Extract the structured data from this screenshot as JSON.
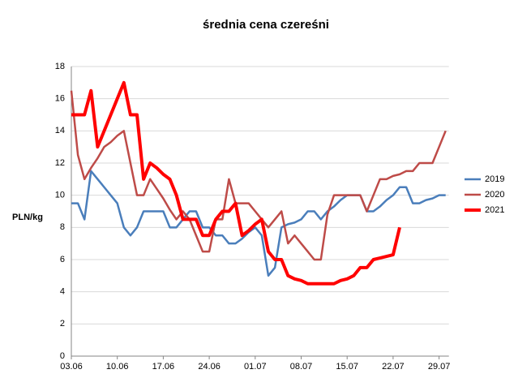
{
  "chart_data": {
    "type": "line",
    "title": "średnia cena czereśni",
    "y_label": "PLN/kg",
    "categories": [
      "03.06",
      null,
      null,
      null,
      null,
      null,
      null,
      "10.06",
      null,
      null,
      null,
      null,
      null,
      null,
      "17.06",
      null,
      null,
      null,
      null,
      null,
      null,
      "24.06",
      null,
      null,
      null,
      null,
      null,
      null,
      "01.07",
      null,
      null,
      null,
      null,
      null,
      null,
      "08.07",
      null,
      null,
      null,
      null,
      null,
      null,
      "15.07",
      null,
      null,
      null,
      null,
      null,
      null,
      "22.07",
      null,
      null,
      null,
      null,
      null,
      null,
      "29.07",
      null
    ],
    "series": [
      {
        "name": "2019",
        "color": "#4a7ebb",
        "width": 2.5,
        "values": [
          9.5,
          9.5,
          8.5,
          11.5,
          11,
          10.5,
          10,
          9.5,
          8,
          7.5,
          8,
          9,
          9,
          9,
          9,
          8,
          8,
          8.5,
          9,
          9,
          8,
          8,
          7.5,
          7.5,
          7,
          7,
          7.3,
          7.7,
          8,
          7.5,
          5,
          5.5,
          8,
          8.2,
          8.3,
          8.5,
          9,
          9,
          8.5,
          9,
          9.3,
          9.7,
          10,
          10,
          10,
          9,
          9,
          9.3,
          9.7,
          10,
          10.5,
          10.5,
          9.5,
          9.5,
          9.7,
          9.8,
          10,
          10
        ]
      },
      {
        "name": "2020",
        "color": "#be4b48",
        "width": 2.5,
        "values": [
          16.5,
          12.5,
          11,
          11.7,
          12.3,
          13,
          13.3,
          13.7,
          14,
          12,
          10,
          10,
          11,
          10.4,
          9.8,
          9.1,
          8.5,
          9,
          8.5,
          7.5,
          6.5,
          6.5,
          8.5,
          8.5,
          11,
          9.5,
          9.5,
          9.5,
          9,
          8.5,
          8,
          8.5,
          9,
          7,
          7.5,
          7,
          6.5,
          6,
          6,
          8.8,
          10,
          10,
          10,
          10,
          10,
          9,
          10,
          11,
          11,
          11.2,
          11.3,
          11.5,
          11.5,
          12,
          12,
          12,
          13,
          14
        ]
      },
      {
        "name": "2021",
        "color": "#ff0000",
        "width": 4,
        "values": [
          15,
          15,
          15,
          16.5,
          13,
          14,
          15,
          16,
          17,
          15,
          15,
          11,
          12,
          11.7,
          11.3,
          11,
          10,
          8.5,
          8.5,
          8.5,
          7.5,
          7.5,
          8.5,
          9,
          9,
          9.5,
          7.5,
          7.8,
          8.2,
          8.5,
          6.5,
          6,
          6,
          5,
          4.8,
          4.7,
          4.5,
          4.5,
          4.5,
          4.5,
          4.5,
          4.7,
          4.8,
          5,
          5.5,
          5.5,
          6,
          6.1,
          6.2,
          6.3,
          8,
          null,
          null,
          null,
          null,
          null,
          null,
          null
        ]
      }
    ],
    "ylim": [
      0,
      18
    ],
    "yticks": [
      0,
      2,
      4,
      6,
      8,
      10,
      12,
      14,
      16,
      18
    ],
    "grid": true,
    "legend": "right"
  }
}
